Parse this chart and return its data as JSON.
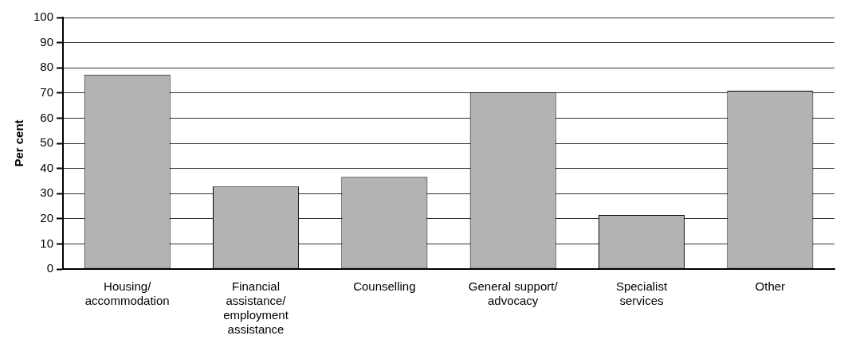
{
  "chart_data": {
    "type": "bar",
    "ylabel": "Per cent",
    "categories": [
      "Housing/ accommodation",
      "Financial assistance/ employment assistance",
      "Counselling",
      "General support/ advocacy",
      "Specialist services",
      "Other"
    ],
    "values": [
      77.3,
      32.8,
      36.6,
      70.2,
      21.5,
      70.9
    ],
    "color": "#b3b3b3",
    "ylim": [
      0,
      100
    ],
    "yticks": [
      0,
      10,
      20,
      30,
      40,
      50,
      60,
      70,
      80,
      90,
      100
    ],
    "grid": "y",
    "legend": false
  }
}
